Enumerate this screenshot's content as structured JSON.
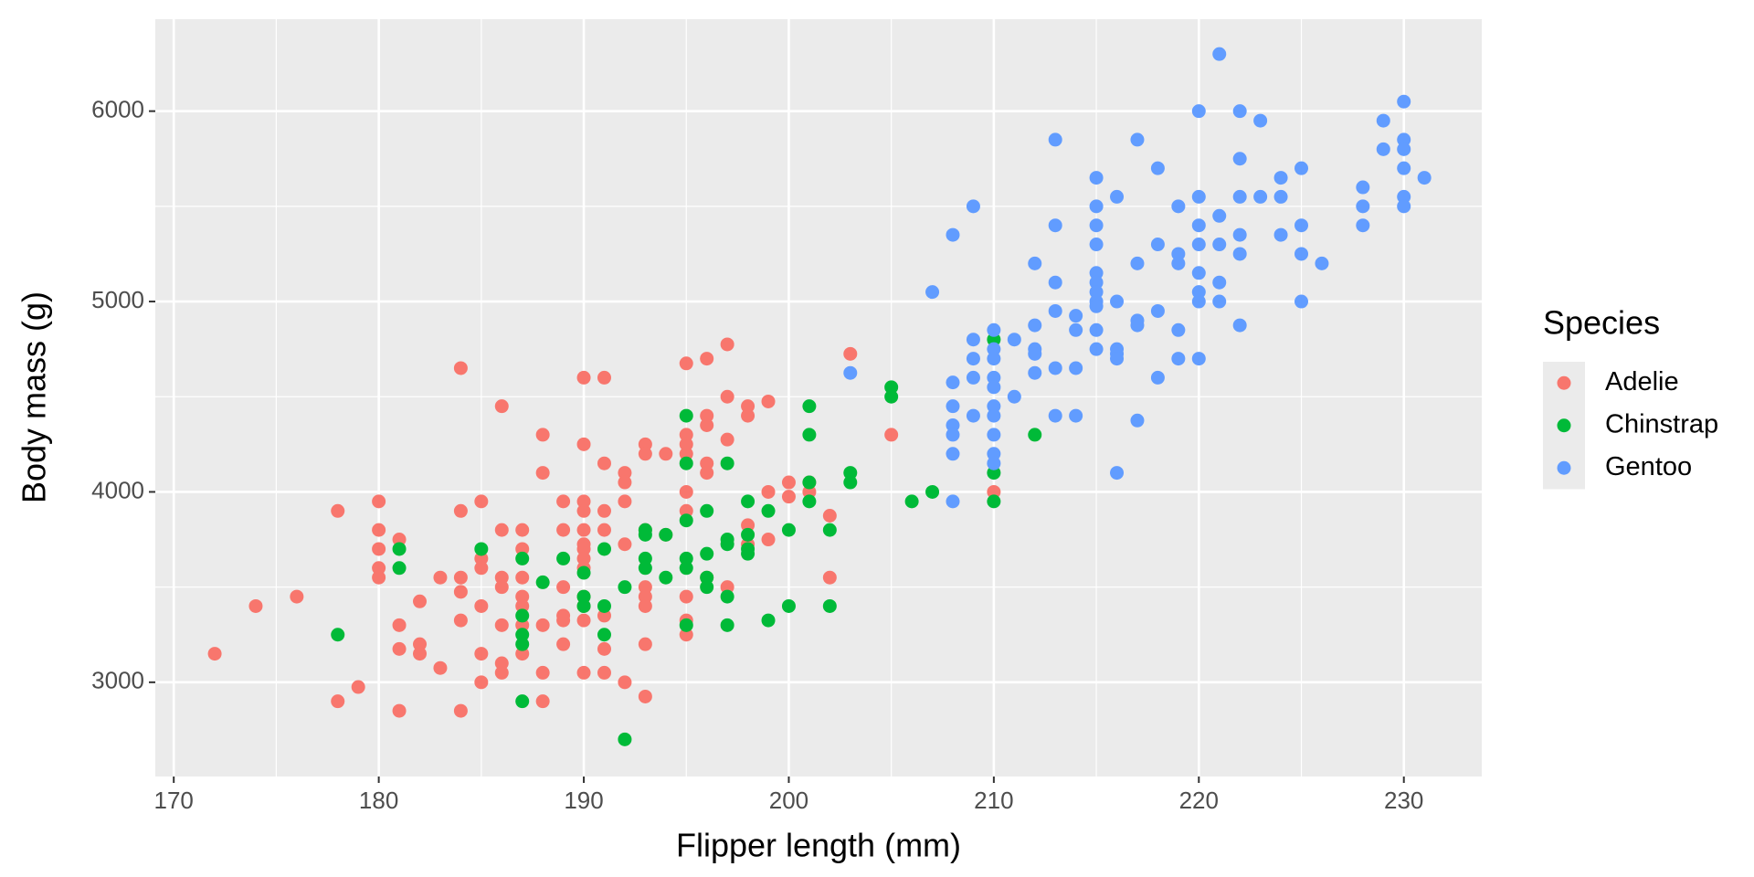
{
  "chart_data": {
    "type": "scatter",
    "x_label": "Flipper length (mm)",
    "y_label": "Body mass (g)",
    "legend_title": "Species",
    "xlim": [
      169.1,
      233.8
    ],
    "ylim": [
      2505,
      6483
    ],
    "xticks": [
      170,
      180,
      190,
      200,
      210,
      220,
      230
    ],
    "yticks": [
      3000,
      4000,
      5000,
      6000
    ],
    "grid": true,
    "legend": "right",
    "series": [
      {
        "name": "Adelie",
        "color": "#F8766D",
        "x": [
          172,
          174,
          176,
          178,
          178,
          179,
          180,
          180,
          180,
          180,
          180,
          181,
          181,
          181,
          181,
          182,
          182,
          182,
          183,
          183,
          184,
          184,
          184,
          184,
          184,
          184,
          185,
          185,
          185,
          185,
          185,
          185,
          186,
          186,
          186,
          186,
          186,
          186,
          186,
          187,
          187,
          187,
          187,
          187,
          187,
          187,
          188,
          188,
          188,
          188,
          188,
          189,
          189,
          189,
          189,
          189,
          189,
          190,
          190,
          190,
          190,
          190,
          190,
          190,
          190,
          190,
          190,
          190,
          190,
          190,
          191,
          191,
          191,
          191,
          191,
          191,
          191,
          192,
          192,
          192,
          192,
          192,
          193,
          193,
          193,
          193,
          193,
          193,
          193,
          193,
          194,
          194,
          195,
          195,
          195,
          195,
          195,
          195,
          195,
          195,
          195,
          196,
          196,
          196,
          196,
          196,
          196,
          197,
          197,
          197,
          197,
          198,
          198,
          198,
          198,
          199,
          199,
          199,
          200,
          200,
          201,
          201,
          202,
          202,
          203,
          205,
          210
        ],
        "values": [
          3150,
          3400,
          3450,
          3900,
          2900,
          2975,
          3950,
          3800,
          3700,
          3600,
          3550,
          3750,
          3300,
          3175,
          2850,
          3425,
          3200,
          3150,
          3550,
          3075,
          4650,
          3900,
          3550,
          3475,
          3325,
          2850,
          3950,
          3650,
          3600,
          3400,
          3150,
          3000,
          4450,
          3800,
          3550,
          3500,
          3300,
          3100,
          3050,
          3800,
          3700,
          3550,
          3450,
          3400,
          3300,
          3150,
          4300,
          4100,
          3300,
          3050,
          2900,
          3950,
          3800,
          3500,
          3350,
          3325,
          3200,
          4600,
          4250,
          3950,
          3900,
          3800,
          3725,
          3700,
          3650,
          3600,
          3450,
          3400,
          3325,
          3050,
          4600,
          4150,
          3900,
          3800,
          3350,
          3175,
          3050,
          4100,
          4050,
          3950,
          3725,
          3000,
          4250,
          4200,
          3800,
          3500,
          3450,
          3400,
          3200,
          2925,
          4200,
          3775,
          4675,
          4300,
          4250,
          4200,
          4000,
          3900,
          3450,
          3325,
          3250,
          4700,
          4400,
          4350,
          4150,
          4100,
          3550,
          4775,
          4500,
          4275,
          3500,
          4450,
          4400,
          3825,
          3725,
          4475,
          4000,
          3750,
          4050,
          3975,
          4050,
          4000,
          3875,
          3550,
          4725,
          4300,
          4000
        ]
      },
      {
        "name": "Chinstrap",
        "color": "#00BA38",
        "x": [
          178,
          181,
          181,
          185,
          187,
          187,
          187,
          187,
          187,
          188,
          189,
          190,
          190,
          190,
          191,
          191,
          191,
          192,
          192,
          193,
          193,
          193,
          193,
          194,
          194,
          195,
          195,
          195,
          195,
          195,
          195,
          196,
          196,
          196,
          196,
          197,
          197,
          197,
          197,
          197,
          198,
          198,
          198,
          198,
          199,
          199,
          200,
          200,
          201,
          201,
          201,
          201,
          202,
          202,
          203,
          203,
          205,
          205,
          206,
          207,
          210,
          210,
          210,
          212
        ],
        "values": [
          3250,
          3700,
          3600,
          3700,
          3650,
          3350,
          3250,
          3200,
          2900,
          3525,
          3650,
          3575,
          3450,
          3400,
          3700,
          3400,
          3250,
          3500,
          2700,
          3800,
          3775,
          3650,
          3600,
          3775,
          3550,
          4400,
          4150,
          3850,
          3650,
          3600,
          3300,
          3900,
          3675,
          3550,
          3500,
          4150,
          3750,
          3725,
          3450,
          3300,
          3950,
          3775,
          3700,
          3675,
          3900,
          3325,
          3800,
          3400,
          4450,
          4300,
          4050,
          3950,
          3800,
          3400,
          4100,
          4050,
          4550,
          4500,
          3950,
          4000,
          4800,
          4100,
          3950,
          4300
        ]
      },
      {
        "name": "Gentoo",
        "color": "#619CFF",
        "x": [
          203,
          207,
          208,
          208,
          208,
          208,
          208,
          208,
          208,
          209,
          209,
          209,
          209,
          209,
          210,
          210,
          210,
          210,
          210,
          210,
          210,
          210,
          210,
          210,
          211,
          211,
          212,
          212,
          212,
          212,
          212,
          213,
          213,
          213,
          213,
          213,
          213,
          214,
          214,
          214,
          214,
          215,
          215,
          215,
          215,
          215,
          215,
          215,
          215,
          215,
          215,
          215,
          216,
          216,
          216,
          216,
          216,
          216,
          217,
          217,
          217,
          217,
          217,
          218,
          218,
          218,
          218,
          219,
          219,
          219,
          219,
          219,
          220,
          220,
          220,
          220,
          220,
          220,
          220,
          220,
          221,
          221,
          221,
          221,
          221,
          222,
          222,
          222,
          222,
          222,
          222,
          223,
          223,
          224,
          224,
          224,
          225,
          225,
          225,
          225,
          226,
          228,
          228,
          228,
          229,
          229,
          230,
          230,
          230,
          230,
          230,
          230,
          231
        ],
        "values": [
          4625,
          5050,
          5350,
          4575,
          4450,
          4350,
          4300,
          4200,
          3950,
          5500,
          4800,
          4700,
          4600,
          4400,
          4850,
          4750,
          4700,
          4600,
          4550,
          4450,
          4400,
          4300,
          4200,
          4150,
          4800,
          4500,
          5200,
          4875,
          4750,
          4725,
          4625,
          5850,
          5400,
          5100,
          4950,
          4650,
          4400,
          4925,
          4850,
          4650,
          4400,
          5650,
          5500,
          5400,
          5300,
          5150,
          5100,
          5050,
          5000,
          4975,
          4850,
          4750,
          5550,
          5000,
          4750,
          4725,
          4700,
          4100,
          5850,
          5200,
          4900,
          4875,
          4375,
          5700,
          5300,
          4950,
          4600,
          5500,
          5250,
          5200,
          4850,
          4700,
          6000,
          5550,
          5400,
          5300,
          5150,
          5050,
          5000,
          4700,
          6300,
          5450,
          5300,
          5100,
          5000,
          6000,
          5750,
          5550,
          5350,
          5250,
          4875,
          5950,
          5550,
          5650,
          5550,
          5350,
          5700,
          5400,
          5250,
          5000,
          5200,
          5600,
          5500,
          5400,
          5950,
          5800,
          6050,
          5850,
          5800,
          5700,
          5550,
          5500,
          5650
        ]
      }
    ]
  }
}
